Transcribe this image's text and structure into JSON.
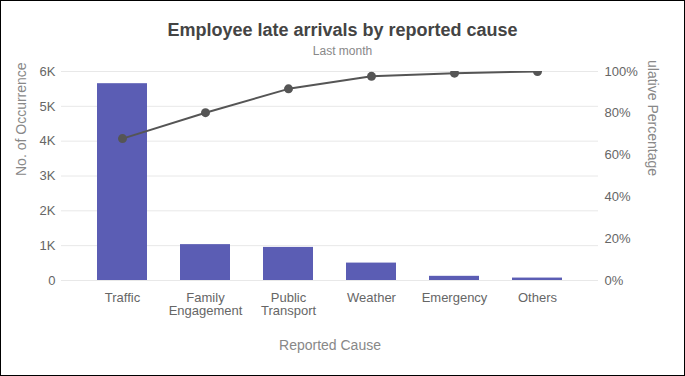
{
  "chart_data": {
    "type": "bar",
    "title": "Employee late arrivals by reported cause",
    "subtitle": "Last month",
    "xlabel": "Reported Cause",
    "ylabel": "No. of Occurrence",
    "y2label": "Cumulative Percentage",
    "categories": [
      "Traffic",
      "Family Engagement",
      "Public Transport",
      "Weather",
      "Emergency",
      "Others"
    ],
    "series": [
      {
        "type": "bar",
        "color": "#5b5db4",
        "values": [
          5650,
          1030,
          950,
          500,
          120,
          70
        ]
      },
      {
        "type": "line",
        "axis": "y2",
        "color": "#555555",
        "marker": "circle",
        "values": [
          67.9,
          80.3,
          91.7,
          97.7,
          99.2,
          100
        ]
      }
    ],
    "ylim": [
      0,
      6000
    ],
    "yticks": [
      0,
      {
        "value": 1000,
        "label": "1K"
      },
      {
        "value": 2000,
        "label": "2K"
      },
      {
        "value": 3000,
        "label": "3K"
      },
      {
        "value": 4000,
        "label": "4K"
      },
      {
        "value": 5000,
        "label": "5K"
      },
      {
        "value": 6000,
        "label": "6K"
      }
    ],
    "y2lim": [
      0,
      100
    ],
    "y2ticks": [
      {
        "value": 0,
        "label": "0%"
      },
      {
        "value": 20,
        "label": "20%"
      },
      {
        "value": 40,
        "label": "40%"
      },
      {
        "value": 60,
        "label": "60%"
      },
      {
        "value": 80,
        "label": "80%"
      },
      {
        "value": 100,
        "label": "100%"
      }
    ],
    "grid": true
  }
}
